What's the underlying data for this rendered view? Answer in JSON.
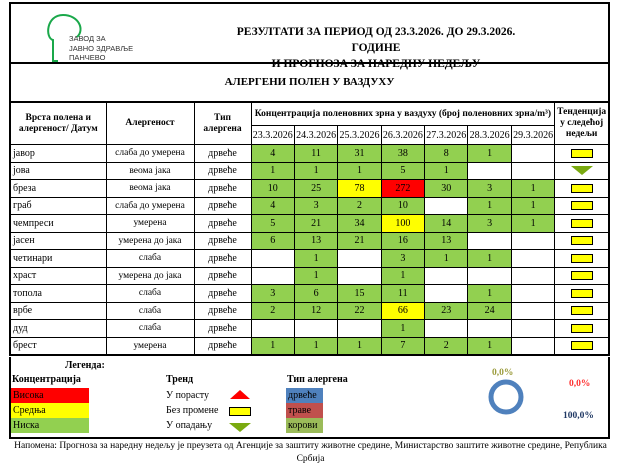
{
  "header": {
    "org_lines": [
      "ЗАВОД ЗА",
      "ЈАВНО ЗДРАВЉЕ",
      "ПАНЧЕВО"
    ],
    "title_line1": "РЕЗУЛТАТИ ЗА ПЕРИОД ОД 23.3.2026. ДО 29.3.2026. ГОДИНЕ",
    "title_line2": "И ПРОГНОЗА ЗА НАРЕДНУ НЕДЕЉУ",
    "subtitle": "АЛЕРГЕНИ ПОЛЕН У ВАЗДУХУ"
  },
  "table": {
    "col_name": "Врста полена и алергеност/ Датум",
    "col_allergen": "Алергеност",
    "col_type": "Тип алергена",
    "col_conc": "Концентрација поленовних зрна у ваздуху (број поленовних зрна/m³)",
    "col_trend": "Тенденција у следећој недељи",
    "dates": [
      "23.3.2026",
      "24.3.2026",
      "25.3.2026",
      "26.3.2026",
      "27.3.2026",
      "28.3.2026",
      "29.3.2026"
    ],
    "rows": [
      {
        "name": "јавор",
        "allergen": "слаба до умерена",
        "type": "дрвеће",
        "values": [
          "4",
          "11",
          "31",
          "38",
          "8",
          "1",
          ""
        ],
        "levels": [
          "low",
          "low",
          "low",
          "low",
          "low",
          "low",
          ""
        ],
        "trend": "flat"
      },
      {
        "name": "јова",
        "allergen": "веома јака",
        "type": "дрвеће",
        "values": [
          "1",
          "1",
          "1",
          "5",
          "1",
          "",
          ""
        ],
        "levels": [
          "low",
          "low",
          "low",
          "low",
          "low",
          "",
          ""
        ],
        "trend": "down"
      },
      {
        "name": "бреза",
        "allergen": "веома јака",
        "type": "дрвеће",
        "values": [
          "10",
          "25",
          "78",
          "272",
          "30",
          "3",
          "1"
        ],
        "levels": [
          "low",
          "low",
          "mid",
          "high",
          "low",
          "low",
          "low"
        ],
        "trend": "flat"
      },
      {
        "name": "граб",
        "allergen": "слаба до умерена",
        "type": "дрвеће",
        "values": [
          "4",
          "3",
          "2",
          "10",
          "",
          "1",
          "1"
        ],
        "levels": [
          "low",
          "low",
          "low",
          "low",
          "",
          "low",
          "low"
        ],
        "trend": "flat"
      },
      {
        "name": "чемпреси",
        "allergen": "умерена",
        "type": "дрвеће",
        "values": [
          "5",
          "21",
          "34",
          "100",
          "14",
          "3",
          "1"
        ],
        "levels": [
          "low",
          "low",
          "low",
          "mid",
          "low",
          "low",
          "low"
        ],
        "trend": "flat"
      },
      {
        "name": "јасен",
        "allergen": "умерена до јака",
        "type": "дрвеће",
        "values": [
          "6",
          "13",
          "21",
          "16",
          "13",
          "",
          ""
        ],
        "levels": [
          "low",
          "low",
          "low",
          "low",
          "low",
          "",
          ""
        ],
        "trend": "flat"
      },
      {
        "name": "четинари",
        "allergen": "слаба",
        "type": "дрвеће",
        "values": [
          "",
          "1",
          "",
          "3",
          "1",
          "1",
          ""
        ],
        "levels": [
          "",
          "low",
          "",
          "low",
          "low",
          "low",
          ""
        ],
        "trend": "flat"
      },
      {
        "name": "храст",
        "allergen": "умерена до јака",
        "type": "дрвеће",
        "values": [
          "",
          "1",
          "",
          "1",
          "",
          "",
          ""
        ],
        "levels": [
          "",
          "low",
          "",
          "low",
          "",
          "",
          ""
        ],
        "trend": "flat"
      },
      {
        "name": "топола",
        "allergen": "слаба",
        "type": "дрвеће",
        "values": [
          "3",
          "6",
          "15",
          "11",
          "",
          "1",
          ""
        ],
        "levels": [
          "low",
          "low",
          "low",
          "low",
          "",
          "low",
          ""
        ],
        "trend": "flat"
      },
      {
        "name": "врбе",
        "allergen": "слаба",
        "type": "дрвеће",
        "values": [
          "2",
          "12",
          "22",
          "66",
          "23",
          "24",
          ""
        ],
        "levels": [
          "low",
          "low",
          "low",
          "mid",
          "low",
          "low",
          ""
        ],
        "trend": "flat"
      },
      {
        "name": "дуд",
        "allergen": "слаба",
        "type": "дрвеће",
        "values": [
          "",
          "",
          "",
          "1",
          "",
          "",
          ""
        ],
        "levels": [
          "",
          "",
          "",
          "low",
          "",
          "",
          ""
        ],
        "trend": "flat"
      },
      {
        "name": "брест",
        "allergen": "умерена",
        "type": "дрвеће",
        "values": [
          "1",
          "1",
          "1",
          "7",
          "2",
          "1",
          ""
        ],
        "levels": [
          "low",
          "low",
          "low",
          "low",
          "low",
          "low",
          ""
        ],
        "trend": "flat"
      }
    ]
  },
  "legend": {
    "title": "Легенда:",
    "conc_title": "Концентрација",
    "conc": [
      {
        "label": "Висока",
        "color": "#ff0000"
      },
      {
        "label": "Средња",
        "color": "#ffff00"
      },
      {
        "label": "Ниска",
        "color": "#92d050"
      }
    ],
    "trend_title": "Тренд",
    "trends": [
      "У порасту",
      "Без промене",
      "У опадању"
    ],
    "type_title": "Тип алергена",
    "types": [
      {
        "label": "дрвеће",
        "color": "#4f81bd"
      },
      {
        "label": "траве",
        "color": "#c0504d"
      },
      {
        "label": "корови",
        "color": "#9bbb59"
      }
    ],
    "donut": {
      "label_top": "0,0%",
      "label_red": "0,0%",
      "label_bottom": "100,0%",
      "shares": {
        "дрвеће": 100,
        "траве": 0,
        "корови": 0
      }
    }
  },
  "note": "Напомена: Прогноза за наредну недељу је преузета од Агенције за заштиту животне средине, Министарство заштите животне средине, Република Србија"
}
